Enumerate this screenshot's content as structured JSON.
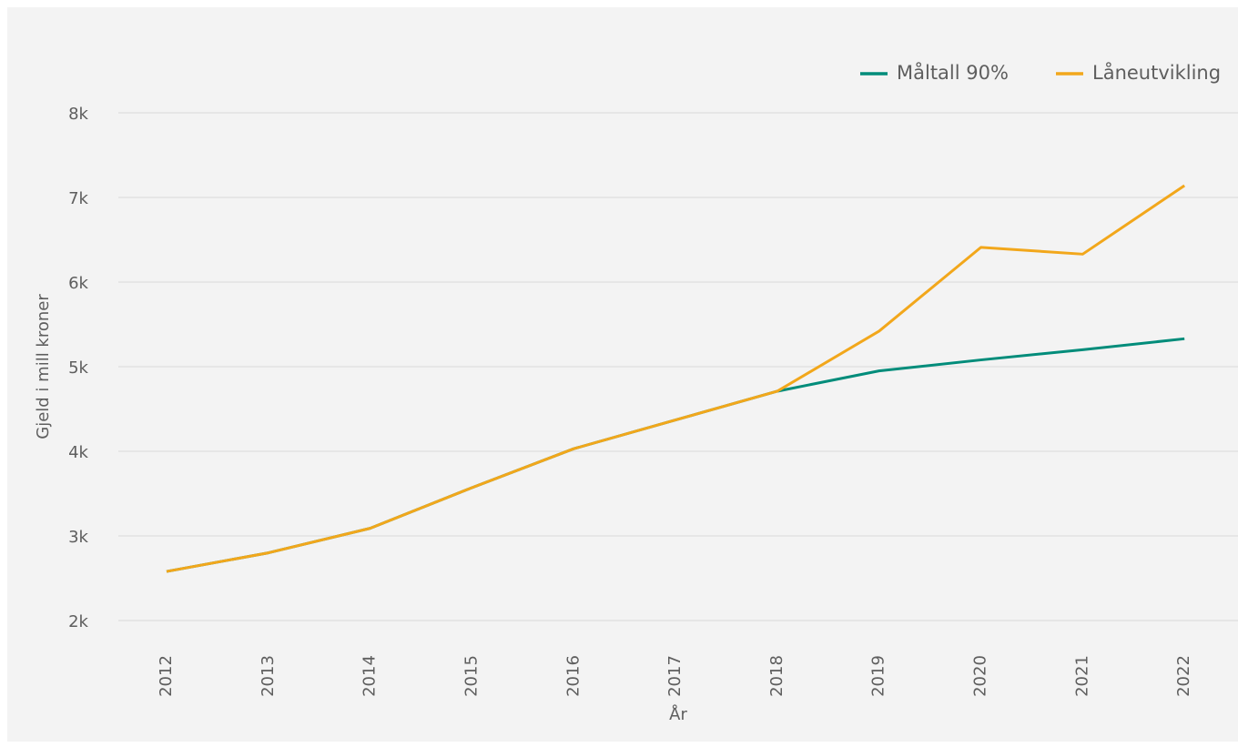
{
  "chart_data": {
    "type": "line",
    "xlabel": "År",
    "ylabel": "Gjeld i mill kroner",
    "categories": [
      "2012",
      "2013",
      "2014",
      "2015",
      "2016",
      "2017",
      "2018",
      "2019",
      "2020",
      "2021",
      "2022"
    ],
    "series": [
      {
        "name": "Måltall 90%",
        "color": "#008c7a",
        "values": [
          2580,
          2800,
          3090,
          3570,
          4030,
          4370,
          4710,
          4950,
          5080,
          5200,
          5330
        ]
      },
      {
        "name": "Låneutvikling",
        "color": "#f2a71b",
        "values": [
          2580,
          2800,
          3090,
          3570,
          4030,
          4370,
          4710,
          5420,
          6410,
          6330,
          7140
        ]
      }
    ],
    "ylim": [
      2000,
      8000
    ],
    "yticks": [
      {
        "value": 2000,
        "label": "2k"
      },
      {
        "value": 3000,
        "label": "3k"
      },
      {
        "value": 4000,
        "label": "4k"
      },
      {
        "value": 5000,
        "label": "5k"
      },
      {
        "value": 6000,
        "label": "6k"
      },
      {
        "value": 7000,
        "label": "7k"
      },
      {
        "value": 8000,
        "label": "8k"
      }
    ],
    "grid": true,
    "legend": "top-right"
  }
}
